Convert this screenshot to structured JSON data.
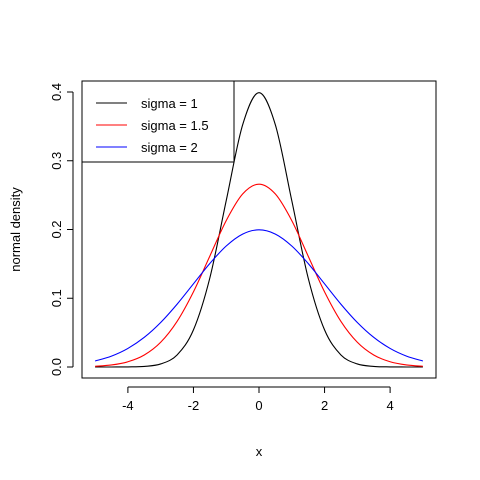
{
  "chart_data": {
    "type": "line",
    "title": "",
    "xlabel": "x",
    "ylabel": "normal density",
    "xlim": [
      -5.4,
      5.4
    ],
    "ylim": [
      -0.016,
      0.416
    ],
    "xticks": [
      -4,
      -2,
      0,
      2,
      4
    ],
    "yticks": [
      0.0,
      0.1,
      0.2,
      0.3,
      0.4
    ],
    "xtick_labels": [
      "-4",
      "-2",
      "0",
      "2",
      "4"
    ],
    "ytick_labels": [
      "0.0",
      "0.1",
      "0.2",
      "0.3",
      "0.4"
    ],
    "grid": false,
    "legend_position": "top-left",
    "x": [
      -5,
      -4.5,
      -4,
      -3.5,
      -3,
      -2.5,
      -2,
      -1.5,
      -1,
      -0.5,
      0,
      0.5,
      1,
      1.5,
      2,
      2.5,
      3,
      3.5,
      4,
      4.5,
      5
    ],
    "series": [
      {
        "name": "sigma = 1",
        "color": "#000000",
        "values": [
          1.5e-06,
          1.6e-05,
          0.000134,
          0.000873,
          0.004432,
          0.017528,
          0.053991,
          0.129518,
          0.241971,
          0.352065,
          0.398942,
          0.352065,
          0.241971,
          0.129518,
          0.053991,
          0.017528,
          0.004432,
          0.000873,
          0.000134,
          1.6e-05,
          1.5e-06
        ]
      },
      {
        "name": "sigma = 1.5",
        "color": "#ff0000",
        "values": [
          0.001028,
          0.002955,
          0.007597,
          0.017467,
          0.035994,
          0.066313,
          0.10934,
          0.161314,
          0.212965,
          0.251589,
          0.265962,
          0.251589,
          0.212965,
          0.161314,
          0.10934,
          0.066313,
          0.035994,
          0.017467,
          0.007597,
          0.002955,
          0.001028
        ]
      },
      {
        "name": "sigma = 2",
        "color": "#0000ff",
        "values": [
          0.008764,
          0.01587,
          0.026995,
          0.043138,
          0.064759,
          0.091325,
          0.120985,
          0.150569,
          0.176033,
          0.193334,
          0.199471,
          0.193334,
          0.176033,
          0.150569,
          0.120985,
          0.091325,
          0.064759,
          0.043138,
          0.026995,
          0.01587,
          0.008764
        ]
      }
    ]
  }
}
